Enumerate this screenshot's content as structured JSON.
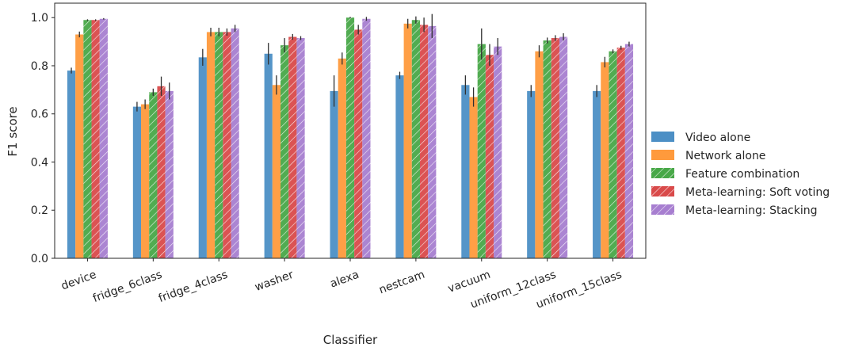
{
  "chart_data": {
    "type": "bar",
    "xlabel": "Classifier",
    "ylabel": "F1 score",
    "ylim": [
      0,
      1.06
    ],
    "yticks": [
      "0.0",
      "0.2",
      "0.4",
      "0.6",
      "0.8",
      "1.0"
    ],
    "grid": false,
    "legend_position": "right",
    "categories": [
      "device",
      "fridge_6class",
      "fridge_4class",
      "washer",
      "alexa",
      "nestcam",
      "vacuum",
      "uniform_12class",
      "uniform_15class"
    ],
    "series": [
      {
        "name": "Video alone",
        "color": "#4c8fc5",
        "hatch": false,
        "values": [
          0.78,
          0.63,
          0.835,
          0.85,
          0.695,
          0.76,
          0.72,
          0.695,
          0.695
        ],
        "errors": [
          0.012,
          0.02,
          0.035,
          0.045,
          0.065,
          0.015,
          0.04,
          0.025,
          0.025
        ]
      },
      {
        "name": "Network alone",
        "color": "#ff9a3c",
        "hatch": false,
        "values": [
          0.93,
          0.64,
          0.94,
          0.72,
          0.83,
          0.975,
          0.67,
          0.86,
          0.815
        ],
        "errors": [
          0.012,
          0.02,
          0.018,
          0.04,
          0.025,
          0.02,
          0.04,
          0.025,
          0.022
        ]
      },
      {
        "name": "Feature combination",
        "color": "#48a848",
        "hatch": true,
        "values": [
          0.99,
          0.69,
          0.94,
          0.885,
          1.0,
          0.99,
          0.89,
          0.905,
          0.86
        ],
        "errors": [
          0.003,
          0.015,
          0.018,
          0.03,
          0.003,
          0.015,
          0.065,
          0.012,
          0.008
        ]
      },
      {
        "name": "Meta-learning: Soft voting",
        "color": "#d94a4a",
        "hatch": true,
        "values": [
          0.99,
          0.715,
          0.94,
          0.92,
          0.95,
          0.97,
          0.845,
          0.915,
          0.875
        ],
        "errors": [
          0.003,
          0.04,
          0.015,
          0.012,
          0.02,
          0.03,
          0.045,
          0.012,
          0.008
        ]
      },
      {
        "name": "Meta-learning: Stacking",
        "color": "#a77ed0",
        "hatch": true,
        "values": [
          0.995,
          0.695,
          0.955,
          0.915,
          0.995,
          0.965,
          0.88,
          0.92,
          0.89
        ],
        "errors": [
          0.003,
          0.035,
          0.015,
          0.008,
          0.008,
          0.05,
          0.035,
          0.015,
          0.01
        ]
      }
    ]
  }
}
